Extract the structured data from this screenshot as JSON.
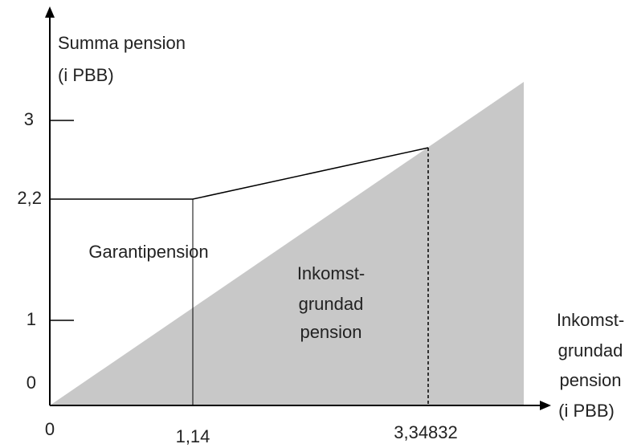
{
  "y_axis": {
    "label": [
      "Summa pension",
      "(i PBB)"
    ],
    "ticks": [
      "3",
      "2,2",
      "1",
      "0"
    ]
  },
  "x_axis": {
    "label": [
      "Inkomst-",
      "grundad",
      "pension",
      "(i PBB)"
    ],
    "ticks": [
      "0",
      "1,14",
      "3,34832"
    ]
  },
  "regions": {
    "guarantee": "Garantipension",
    "income": [
      "Inkomst-",
      "grundad",
      "pension"
    ]
  }
}
